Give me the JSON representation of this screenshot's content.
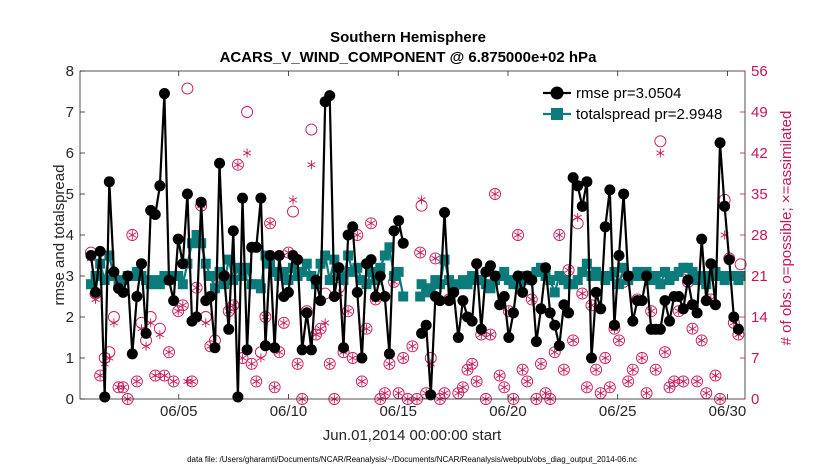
{
  "chart_data": {
    "type": "line",
    "title": "Southern Hemisphere",
    "subtitle": "ACARS_V_WIND_COMPONENT @ 6.875000e+02 hPa",
    "xlabel": "Jun.01,2014 00:00:00 start",
    "ylabel": "rmse and totalspread",
    "y2label": "# of obs: o=possible; ×=assimilated",
    "footer": "data file: /Users/gharamti/Documents/NCAR/Reanalysis/~/Documents/NCAR/Reanalysis/webpub/obs_diag_output_2014-06.nc",
    "xlim": [
      0.5,
      30.8
    ],
    "ylim": [
      0,
      8
    ],
    "y2lim": [
      0,
      56
    ],
    "x_ticks": [
      5,
      10,
      15,
      20,
      25,
      30
    ],
    "x_tick_labels": [
      "06/05",
      "06/10",
      "06/15",
      "06/20",
      "06/25",
      "06/30"
    ],
    "y_ticks": [
      0,
      1,
      2,
      3,
      4,
      5,
      6,
      7,
      8
    ],
    "y_tick_labels": [
      "0",
      "1",
      "2",
      "3",
      "4",
      "5",
      "6",
      "7",
      "8"
    ],
    "y2_ticks": [
      0,
      7,
      14,
      21,
      28,
      35,
      42,
      49,
      56
    ],
    "y2_tick_labels": [
      "0",
      "7",
      "14",
      "21",
      "28",
      "35",
      "42",
      "49",
      "56"
    ],
    "legend_position": "top-right",
    "colors": {
      "rmse": "#000000",
      "spread": "#0c7b7b",
      "obs": "#c8155a"
    },
    "series": [
      {
        "name": "rmse pr=3.0504",
        "values": [
          3.5,
          2.6,
          3.6,
          0.05,
          5.3,
          3.1,
          2.7,
          2.6,
          3.0,
          1.1,
          2.5,
          3.3,
          1.6,
          4.6,
          4.5,
          5.2,
          7.45,
          2.9,
          2.4,
          3.9,
          3.3,
          5.0,
          1.9,
          2.0,
          4.8,
          2.4,
          2.5,
          1.25,
          5.75,
          3.0,
          1.7,
          4.1,
          0.05,
          4.9,
          1.2,
          3.7,
          3.7,
          4.9,
          1.3,
          3.5,
          1.25,
          3.5,
          2.5,
          2.6,
          3.5,
          3.4,
          1.2,
          2.1,
          1.2,
          2.9,
          2.4,
          7.25,
          7.4,
          2.5,
          3.2,
          1.25,
          4.0,
          4.2,
          2.6,
          1.0,
          3.3,
          3.4,
          2.5,
          3.0,
          2.5,
          1.1,
          4.1,
          4.35,
          3.8,
          null,
          null,
          null,
          1.6,
          1.8,
          0.1,
          2.5,
          2.4,
          4.55,
          2.4,
          2.6,
          1.5,
          2.4,
          2.0,
          1.9,
          3.3,
          1.7,
          3.1,
          3.25,
          3.0,
          2.3,
          2.5,
          1.5,
          2.1,
          3.0,
          2.6,
          3.0,
          2.9,
          1.4,
          2.2,
          3.2,
          2.1,
          1.8,
          1.3,
          2.3,
          2.1,
          5.4,
          5.2,
          4.7,
          5.3,
          1.0,
          2.6,
          2.2,
          4.2,
          5.1,
          1.8,
          3.5,
          5.0,
          3.0,
          1.9,
          2.4,
          2.4,
          3.0,
          1.7,
          1.7,
          1.7,
          2.4,
          1.9,
          2.5,
          2.5,
          2.2,
          2.9,
          2.3,
          2.1,
          3.9,
          2.4,
          3.3,
          2.3,
          6.25,
          4.7,
          3.4,
          2.0,
          1.7
        ]
      },
      {
        "name": "totalspread pr=2.9948",
        "values": [
          2.8,
          3.0,
          3.3,
          2.9,
          3.5,
          3.0,
          2.8,
          2.9,
          3.0,
          3.0,
          3.1,
          3.0,
          2.9,
          2.8,
          2.9,
          2.8,
          3.0,
          2.9,
          3.0,
          3.0,
          2.8,
          3.3,
          3.8,
          4.0,
          3.8,
          3.3,
          3.0,
          2.7,
          3.1,
          2.8,
          3.4,
          2.9,
          3.2,
          3.0,
          3.2,
          2.8,
          2.8,
          2.7,
          3.5,
          3.3,
          3.1,
          3.0,
          3.1,
          2.9,
          3.2,
          3.0,
          3.1,
          3.3,
          3.0,
          2.8,
          3.3,
          3.5,
          2.9,
          3.4,
          3.0,
          2.9,
          3.5,
          3.1,
          3.2,
          2.9,
          2.8,
          3.1,
          2.9,
          3.2,
          3.5,
          3.7,
          3.0,
          3.1,
          2.5,
          null,
          null,
          null,
          2.8,
          2.6,
          2.7,
          2.9,
          2.8,
          3.4,
          2.9,
          2.7,
          2.8,
          2.9,
          2.8,
          3.0,
          2.9,
          2.9,
          2.8,
          2.7,
          2.9,
          3.0,
          3.1,
          2.9,
          2.8,
          2.8,
          3.0,
          2.9,
          3.0,
          3.1,
          3.2,
          3.0,
          2.9,
          2.6,
          3.0,
          2.9,
          2.8,
          2.8,
          2.9,
          3.1,
          3.3,
          3.0,
          3.1,
          3.0,
          2.9,
          3.0,
          3.1,
          2.8,
          3.2,
          2.9,
          3.0,
          3.1,
          3.0,
          3.1,
          2.9,
          3.0,
          2.8,
          3.1,
          2.9,
          3.0,
          3.1,
          3.2,
          3.2,
          3.1,
          2.9,
          3.0,
          2.8,
          3.0,
          3.1,
          3.0,
          2.9,
          3.0,
          3.0,
          2.9
        ]
      }
    ],
    "gap_points": [
      {
        "x": 16.0,
        "rmse": 2.5,
        "spread": 2.5,
        "possible": 25,
        "assimilated": 25
      },
      {
        "x": 30.6,
        "rmse": 2.9,
        "spread": 3.0,
        "possible": 23,
        "assimilated": null
      }
    ],
    "obs_counts": {
      "possible": [
        25,
        18,
        4,
        7,
        8,
        14,
        2,
        2,
        0,
        28,
        3,
        13,
        10,
        14,
        4,
        12,
        4,
        8,
        3,
        15,
        16,
        53,
        3,
        19,
        33,
        14,
        9,
        10,
        20,
        21,
        15,
        16,
        40,
        7,
        49,
        6,
        3,
        8,
        14,
        30,
        2,
        8,
        13,
        25,
        32,
        6,
        0,
        15,
        46,
        11,
        12,
        18,
        6,
        0,
        19,
        8,
        15,
        7,
        28,
        3,
        12,
        30,
        17,
        0,
        1,
        6,
        20,
        1,
        7,
        0,
        9,
        0,
        33,
        1,
        7,
        24,
        0,
        1,
        17,
        19,
        1,
        2,
        5,
        6,
        3,
        11,
        0,
        11,
        35,
        4,
        2,
        15,
        0,
        28,
        5,
        3,
        17,
        0,
        6,
        1,
        0,
        8,
        28,
        5,
        22,
        10,
        30,
        18,
        2,
        16,
        5,
        1,
        7,
        2,
        12,
        10,
        20,
        3,
        5,
        17,
        7,
        1,
        15,
        5,
        44,
        8,
        2,
        3,
        15,
        3,
        20,
        12,
        3,
        10,
        1,
        17,
        4,
        0,
        34,
        24,
        13,
        11
      ],
      "assimilated": [
        24,
        17,
        4,
        6,
        7,
        13,
        2,
        2,
        0,
        28,
        3,
        12,
        9,
        13,
        4,
        11,
        4,
        8,
        3,
        15,
        16,
        3,
        3,
        19,
        33,
        13,
        9,
        9,
        20,
        21,
        15,
        16,
        40,
        7,
        42,
        6,
        3,
        7,
        14,
        30,
        2,
        8,
        13,
        25,
        34,
        6,
        0,
        15,
        40,
        11,
        12,
        13,
        6,
        0,
        18,
        8,
        15,
        7,
        28,
        3,
        12,
        30,
        17,
        0,
        1,
        6,
        20,
        1,
        7,
        0,
        9,
        0,
        34,
        1,
        6,
        24,
        0,
        1,
        17,
        19,
        1,
        2,
        5,
        6,
        3,
        11,
        0,
        11,
        35,
        4,
        2,
        15,
        0,
        28,
        5,
        3,
        17,
        0,
        6,
        1,
        0,
        8,
        28,
        5,
        22,
        10,
        31,
        18,
        2,
        16,
        5,
        1,
        7,
        2,
        12,
        10,
        20,
        3,
        5,
        17,
        7,
        1,
        15,
        5,
        42,
        8,
        2,
        3,
        15,
        3,
        21,
        12,
        3,
        10,
        1,
        17,
        4,
        0,
        28,
        24,
        13,
        11
      ]
    }
  }
}
